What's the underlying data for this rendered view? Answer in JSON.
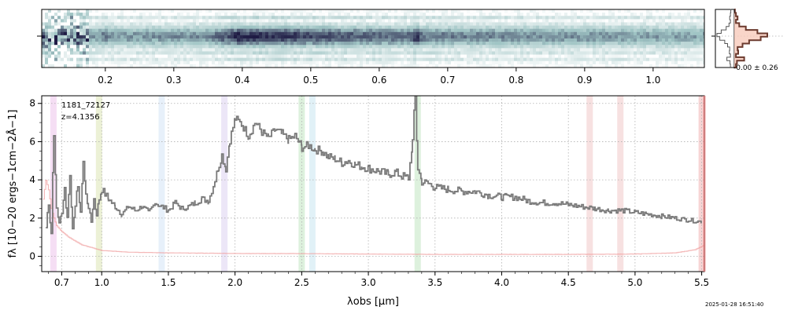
{
  "chart_data": [
    {
      "type": "heatmap",
      "panel": "2d-spectrum",
      "top_ticks": [
        {
          "wave": 0.2,
          "label": "0.2"
        },
        {
          "wave": 0.3,
          "label": "0.3"
        },
        {
          "wave": 0.4,
          "label": "0.4"
        },
        {
          "wave": 0.5,
          "label": "0.5"
        },
        {
          "wave": 0.6,
          "label": "0.6"
        },
        {
          "wave": 0.7,
          "label": "0.7"
        },
        {
          "wave": 0.8,
          "label": "0.8"
        },
        {
          "wave": 0.9,
          "label": "0.9"
        },
        {
          "wave": 1.0,
          "label": "1.0"
        }
      ],
      "rest_frame_z": 4.1356,
      "colors": {
        "low": "#ffffff",
        "mid": "#9fc4c4",
        "high": "#1f1b44"
      }
    },
    {
      "type": "histogram",
      "panel": "pixel-histogram",
      "annotation": "-0.00 ± 0.26",
      "colors": {
        "fill": "#f8cbbc",
        "edge": "#6b3a2e"
      }
    },
    {
      "type": "line",
      "panel": "1d-spectrum",
      "object_id": "1181_72127",
      "redshift_label": "z=4.1356",
      "xlabel": "λobs [μm]",
      "ylabel": "fλ [10−20 ergs−1cm−2Å−1]",
      "xlim": [
        0.55,
        5.52
      ],
      "ylim": [
        -0.8,
        8.4
      ],
      "x_ticks": [
        {
          "value": 0.7,
          "label": "0.7"
        },
        {
          "value": 1.0,
          "label": "1.0"
        },
        {
          "value": 1.5,
          "label": "1.5"
        },
        {
          "value": 2.0,
          "label": "2.0"
        },
        {
          "value": 2.5,
          "label": "2.5"
        },
        {
          "value": 3.0,
          "label": "3.0"
        },
        {
          "value": 3.5,
          "label": "3.5"
        },
        {
          "value": 4.0,
          "label": "4.0"
        },
        {
          "value": 4.5,
          "label": "4.5"
        },
        {
          "value": 5.0,
          "label": "5.0"
        },
        {
          "value": 5.5,
          "label": "5.5"
        }
      ],
      "y_ticks": [
        {
          "value": 0,
          "label": "0"
        },
        {
          "value": 2,
          "label": "2"
        },
        {
          "value": 4,
          "label": "4"
        },
        {
          "value": 6,
          "label": "6"
        },
        {
          "value": 8,
          "label": "8"
        }
      ],
      "grid": true,
      "flux": {
        "x": [
          0.58,
          0.6,
          0.62,
          0.64,
          0.66,
          0.68,
          0.7,
          0.72,
          0.74,
          0.76,
          0.78,
          0.8,
          0.82,
          0.84,
          0.86,
          0.88,
          0.9,
          0.92,
          0.94,
          0.96,
          0.98,
          1.0,
          1.05,
          1.1,
          1.15,
          1.2,
          1.25,
          1.3,
          1.35,
          1.4,
          1.45,
          1.5,
          1.55,
          1.6,
          1.65,
          1.7,
          1.75,
          1.8,
          1.85,
          1.88,
          1.9,
          1.93,
          1.96,
          2.0,
          2.05,
          2.1,
          2.15,
          2.2,
          2.25,
          2.3,
          2.35,
          2.4,
          2.45,
          2.5,
          2.55,
          2.6,
          2.65,
          2.7,
          2.75,
          2.8,
          2.85,
          2.9,
          2.95,
          3.0,
          3.05,
          3.1,
          3.15,
          3.2,
          3.25,
          3.3,
          3.33,
          3.35,
          3.37,
          3.4,
          3.45,
          3.5,
          3.6,
          3.7,
          3.8,
          3.9,
          4.0,
          4.1,
          4.2,
          4.3,
          4.4,
          4.5,
          4.6,
          4.7,
          4.8,
          4.9,
          5.0,
          5.1,
          5.2,
          5.3,
          5.4,
          5.5
        ],
        "y": [
          1.5,
          2.8,
          1.2,
          6.5,
          2.5,
          1.8,
          2.2,
          3.6,
          2.0,
          4.2,
          1.5,
          2.5,
          3.8,
          2.2,
          5.0,
          3.2,
          2.6,
          1.8,
          3.0,
          2.2,
          3.0,
          3.5,
          3.0,
          2.6,
          2.2,
          2.6,
          2.4,
          2.6,
          2.3,
          2.8,
          2.6,
          2.4,
          2.8,
          2.5,
          2.6,
          2.8,
          3.0,
          2.9,
          4.0,
          4.8,
          5.3,
          4.6,
          6.1,
          7.2,
          6.9,
          6.3,
          7.0,
          6.5,
          6.2,
          6.6,
          6.4,
          6.1,
          6.3,
          5.7,
          5.8,
          5.6,
          5.5,
          5.2,
          5.1,
          4.9,
          5.0,
          4.8,
          4.7,
          4.6,
          4.5,
          4.4,
          4.3,
          4.4,
          4.2,
          4.1,
          6.0,
          8.4,
          4.6,
          3.9,
          3.8,
          3.6,
          3.5,
          3.4,
          3.4,
          3.2,
          3.1,
          3.1,
          2.9,
          2.8,
          2.8,
          2.7,
          2.6,
          2.5,
          2.4,
          2.4,
          2.3,
          2.2,
          2.1,
          2.0,
          1.9,
          1.8
        ]
      },
      "error": {
        "x": [
          0.56,
          0.58,
          0.6,
          0.62,
          0.64,
          0.66,
          0.7,
          0.75,
          0.8,
          0.85,
          0.9,
          1.0,
          1.2,
          1.5,
          2.0,
          2.5,
          3.0,
          3.5,
          4.0,
          4.5,
          5.0,
          5.3,
          5.45,
          5.52
        ],
        "y": [
          3.0,
          4.0,
          3.5,
          2.5,
          2.0,
          1.6,
          1.3,
          1.0,
          0.8,
          0.6,
          0.5,
          0.3,
          0.22,
          0.18,
          0.15,
          0.14,
          0.12,
          0.1,
          0.1,
          0.1,
          0.12,
          0.18,
          0.35,
          0.6
        ]
      },
      "line_bands": [
        {
          "center": 0.638,
          "color": "#e3a0e0"
        },
        {
          "center": 0.98,
          "color": "#c8d88a"
        },
        {
          "center": 1.45,
          "color": "#b9d4f0"
        },
        {
          "center": 1.92,
          "color": "#c9b8e8"
        },
        {
          "center": 2.5,
          "color": "#9fd79f"
        },
        {
          "center": 2.58,
          "color": "#a8d8e8"
        },
        {
          "center": 3.37,
          "color": "#9fd79f"
        },
        {
          "center": 4.66,
          "color": "#e8a8a8"
        },
        {
          "center": 4.89,
          "color": "#e8a8a8"
        },
        {
          "center": 5.5,
          "color": "#e88888"
        }
      ],
      "colors": {
        "flux": "#7a7a7a",
        "error": "#f0a0a0",
        "spine_right": "#f08080"
      }
    }
  ],
  "timestamp": "2025-01-28 16:51:40"
}
